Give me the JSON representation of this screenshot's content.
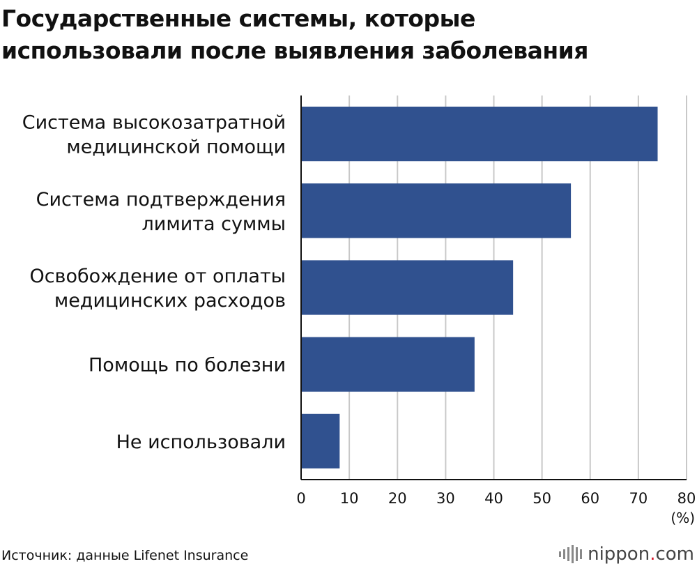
{
  "title_lines": [
    "Государственные системы, которые",
    "использовали после выявления заболевания"
  ],
  "source": "Источник: данные Lifenet Insurance",
  "logo": {
    "name": "nippon",
    "dot": ".",
    "tld": "com"
  },
  "colors": {
    "bar": "#30518f",
    "grid": "#c8c8c8",
    "axis": "#111111"
  },
  "chart_data": {
    "type": "bar",
    "orientation": "horizontal",
    "categories": [
      [
        "Система высокозатратной",
        "медицинской помощи"
      ],
      [
        "Система подтверждения",
        "лимита суммы"
      ],
      [
        "Освобождение от оплаты",
        "медицинских расходов"
      ],
      [
        "Помощь по болезни"
      ],
      [
        "Не использовали"
      ]
    ],
    "values": [
      74,
      56,
      44,
      36,
      8
    ],
    "xlim": [
      0,
      80
    ],
    "xticks": [
      "0",
      "10",
      "20",
      "30",
      "40",
      "50",
      "60",
      "70",
      "80"
    ],
    "xunit": "(%)",
    "grid": true
  }
}
